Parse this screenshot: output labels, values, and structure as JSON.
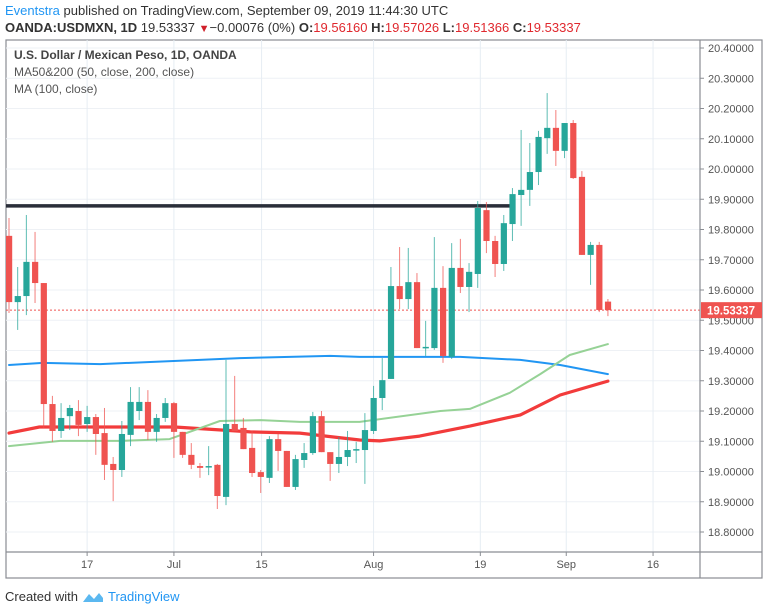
{
  "header": {
    "author": "Eventstra",
    "published": " published on TradingView.com, September 09, 2019 11:44:30 UTC",
    "symbol": "OANDA:USDMXN, 1D",
    "last": "19.53337",
    "change": "−0.00076 (0%)",
    "o_label": "O:",
    "o": "19.56160",
    "h_label": "H:",
    "h": "19.57026",
    "l_label": "L:",
    "l": "19.51366",
    "c_label": "C:",
    "c": "19.53337"
  },
  "legend": {
    "title": "U.S. Dollar / Mexican Peso, 1D, OANDA",
    "ma50_200": "MA50&200 (50, close, 200, close)",
    "ma100": "MA (100, close)"
  },
  "footer": {
    "created_with": "Created with",
    "brand": "TradingView"
  },
  "colors": {
    "up": "#26a69a",
    "down": "#ef5350",
    "ma100": "#2196f3",
    "ma200": "#f23b3b",
    "ma50": "#96d296",
    "resistance": "#2a2e39",
    "author": "#2196f3"
  },
  "chart_data": {
    "type": "candlestick",
    "title": "U.S. Dollar / Mexican Peso, 1D, OANDA",
    "ylim": [
      18.72,
      20.44
    ],
    "y_ticks": [
      "20.40000",
      "20.30000",
      "20.20000",
      "20.10000",
      "20.00000",
      "19.90000",
      "19.80000",
      "19.70000",
      "19.60000",
      "19.50000",
      "19.40000",
      "19.30000",
      "19.20000",
      "19.10000",
      "19.00000",
      "18.90000",
      "18.80000"
    ],
    "x_ticks": [
      {
        "label": "17",
        "index": 9.0
      },
      {
        "label": "Jul",
        "index": 19.0
      },
      {
        "label": "15",
        "index": 29.1
      },
      {
        "label": "Aug",
        "index": 42.0
      },
      {
        "label": "19",
        "index": 54.3
      },
      {
        "label": "Sep",
        "index": 64.2
      },
      {
        "label": "16",
        "index": 74.2
      }
    ],
    "last_price_label": "19.53337",
    "last_price": 19.53337,
    "ohlc": [
      [
        19.779,
        19.838,
        19.524,
        19.56
      ],
      [
        19.56,
        19.676,
        19.468,
        19.58
      ],
      [
        19.58,
        19.848,
        19.517,
        19.693
      ],
      [
        19.693,
        19.792,
        19.557,
        19.623
      ],
      [
        19.623,
        19.623,
        19.144,
        19.223
      ],
      [
        19.223,
        19.25,
        19.098,
        19.134
      ],
      [
        19.134,
        19.226,
        19.111,
        19.177
      ],
      [
        19.183,
        19.22,
        19.137,
        19.21
      ],
      [
        19.2,
        19.236,
        19.117,
        19.154
      ],
      [
        19.157,
        19.217,
        19.131,
        19.18
      ],
      [
        19.18,
        19.19,
        19.055,
        19.124
      ],
      [
        19.127,
        19.21,
        18.972,
        19.022
      ],
      [
        19.025,
        19.048,
        18.902,
        19.005
      ],
      [
        19.005,
        19.167,
        18.982,
        19.124
      ],
      [
        19.121,
        19.279,
        19.084,
        19.23
      ],
      [
        19.2,
        19.279,
        19.17,
        19.23
      ],
      [
        19.23,
        19.269,
        19.104,
        19.131
      ],
      [
        19.131,
        19.19,
        19.098,
        19.177
      ],
      [
        19.177,
        19.243,
        19.164,
        19.226
      ],
      [
        19.226,
        19.23,
        19.045,
        19.131
      ],
      [
        19.131,
        19.131,
        19.045,
        19.055
      ],
      [
        19.055,
        19.094,
        19.008,
        19.022
      ],
      [
        19.018,
        19.028,
        18.979,
        19.012
      ],
      [
        19.015,
        19.084,
        18.988,
        19.018
      ],
      [
        19.022,
        19.025,
        18.876,
        18.919
      ],
      [
        18.916,
        19.369,
        18.889,
        19.157
      ],
      [
        19.157,
        19.316,
        19.134,
        19.134
      ],
      [
        19.144,
        19.177,
        19.074,
        19.074
      ],
      [
        19.078,
        19.134,
        18.982,
        18.995
      ],
      [
        18.998,
        19.005,
        18.929,
        18.982
      ],
      [
        18.979,
        19.117,
        18.962,
        19.107
      ],
      [
        19.107,
        19.124,
        19.002,
        19.068
      ],
      [
        19.068,
        19.068,
        18.949,
        18.949
      ],
      [
        18.949,
        19.055,
        18.939,
        19.041
      ],
      [
        19.038,
        19.094,
        19.012,
        19.061
      ],
      [
        19.061,
        19.197,
        19.055,
        19.183
      ],
      [
        19.183,
        19.2,
        19.064,
        19.064
      ],
      [
        19.064,
        19.064,
        18.969,
        19.025
      ],
      [
        19.025,
        19.114,
        18.995,
        19.048
      ],
      [
        19.048,
        19.134,
        19.018,
        19.071
      ],
      [
        19.071,
        19.098,
        19.028,
        19.074
      ],
      [
        19.071,
        19.193,
        18.959,
        19.137
      ],
      [
        19.134,
        19.283,
        19.124,
        19.243
      ],
      [
        19.243,
        19.375,
        19.203,
        19.302
      ],
      [
        19.306,
        19.676,
        19.306,
        19.613
      ],
      [
        19.613,
        19.742,
        19.537,
        19.57
      ],
      [
        19.57,
        19.739,
        19.537,
        19.626
      ],
      [
        19.626,
        19.656,
        19.408,
        19.408
      ],
      [
        19.408,
        19.498,
        19.382,
        19.412
      ],
      [
        19.408,
        19.775,
        19.402,
        19.607
      ],
      [
        19.607,
        19.679,
        19.359,
        19.382
      ],
      [
        19.379,
        19.755,
        19.372,
        19.673
      ],
      [
        19.673,
        19.769,
        19.59,
        19.61
      ],
      [
        19.61,
        19.689,
        19.527,
        19.66
      ],
      [
        19.653,
        19.894,
        19.607,
        19.871
      ],
      [
        19.864,
        19.891,
        19.722,
        19.762
      ],
      [
        19.762,
        19.779,
        19.643,
        19.686
      ],
      [
        19.686,
        19.848,
        19.663,
        19.821
      ],
      [
        19.818,
        19.937,
        19.762,
        19.917
      ],
      [
        19.914,
        20.129,
        19.812,
        19.931
      ],
      [
        19.931,
        20.086,
        19.878,
        19.99
      ],
      [
        19.99,
        20.126,
        19.947,
        20.106
      ],
      [
        20.102,
        20.251,
        20.05,
        20.136
      ],
      [
        20.136,
        20.195,
        20.01,
        20.06
      ],
      [
        20.06,
        20.152,
        20.036,
        20.152
      ],
      [
        20.152,
        20.162,
        19.967,
        19.97
      ],
      [
        19.974,
        19.993,
        19.716,
        19.716
      ],
      [
        19.716,
        19.759,
        19.617,
        19.749
      ],
      [
        19.749,
        19.759,
        19.527,
        19.534
      ],
      [
        19.5616,
        19.57026,
        19.51366,
        19.53337
      ]
    ],
    "series": [
      {
        "name": "MA 100",
        "points": [
          [
            0,
            19.352
          ],
          [
            3.9,
            19.359
          ],
          [
            10.5,
            19.355
          ],
          [
            22,
            19.369
          ],
          [
            26.6,
            19.375
          ],
          [
            37,
            19.382
          ],
          [
            40.4,
            19.379
          ],
          [
            45,
            19.379
          ],
          [
            52,
            19.379
          ],
          [
            58.9,
            19.369
          ],
          [
            63.5,
            19.352
          ],
          [
            69,
            19.322
          ]
        ]
      },
      {
        "name": "MA 200",
        "points": [
          [
            0,
            19.127
          ],
          [
            3.5,
            19.147
          ],
          [
            10.5,
            19.147
          ],
          [
            19.1,
            19.147
          ],
          [
            27.8,
            19.131
          ],
          [
            33.5,
            19.127
          ],
          [
            40.4,
            19.104
          ],
          [
            42.7,
            19.101
          ],
          [
            47.3,
            19.117
          ],
          [
            53.1,
            19.15
          ],
          [
            58.9,
            19.187
          ],
          [
            63.5,
            19.253
          ],
          [
            69,
            19.299
          ]
        ]
      },
      {
        "name": "MA 50",
        "points": [
          [
            0,
            19.084
          ],
          [
            5.9,
            19.101
          ],
          [
            12.8,
            19.101
          ],
          [
            18.5,
            19.107
          ],
          [
            24.3,
            19.167
          ],
          [
            29,
            19.17
          ],
          [
            33.5,
            19.164
          ],
          [
            40.4,
            19.164
          ],
          [
            49.7,
            19.2
          ],
          [
            53.1,
            19.207
          ],
          [
            57.7,
            19.26
          ],
          [
            61.2,
            19.322
          ],
          [
            64.6,
            19.385
          ],
          [
            69,
            19.421
          ]
        ]
      }
    ],
    "resistance_line": {
      "price": 19.878,
      "from_index": -0.7,
      "to_index": 58
    }
  }
}
